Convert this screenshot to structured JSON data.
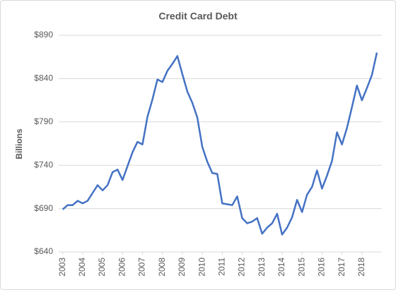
{
  "chart_data": {
    "type": "line",
    "title": "Credit Card Debt",
    "y_label": "Billions",
    "x": [
      2003,
      2003.25,
      2003.5,
      2003.75,
      2004,
      2004.25,
      2004.5,
      2004.75,
      2005,
      2005.25,
      2005.5,
      2005.75,
      2006,
      2006.25,
      2006.5,
      2006.75,
      2007,
      2007.25,
      2007.5,
      2007.75,
      2008,
      2008.25,
      2008.5,
      2008.75,
      2009,
      2009.25,
      2009.5,
      2009.75,
      2010,
      2010.25,
      2010.5,
      2010.75,
      2011,
      2011.25,
      2011.5,
      2011.75,
      2012,
      2012.25,
      2012.5,
      2012.75,
      2013,
      2013.25,
      2013.5,
      2013.75,
      2014,
      2014.25,
      2014.5,
      2014.75,
      2015,
      2015.25,
      2015.5,
      2015.75,
      2016,
      2016.25,
      2016.5,
      2016.75,
      2017,
      2017.25,
      2017.5,
      2017.75,
      2018,
      2018.25,
      2018.5,
      2018.75
    ],
    "series": [
      {
        "name": "Credit Card Debt",
        "color": "#4472c4",
        "values": [
          689,
          694,
          694,
          699,
          696,
          699,
          708,
          717,
          711,
          717,
          732,
          735,
          723,
          739,
          755,
          767,
          764,
          796,
          816,
          839,
          836,
          849,
          857,
          866,
          845,
          825,
          812,
          795,
          761,
          744,
          731,
          730,
          696,
          695,
          694,
          704,
          679,
          673,
          675,
          679,
          661,
          668,
          673,
          684,
          660,
          668,
          680,
          700,
          686,
          706,
          715,
          734,
          713,
          728,
          745,
          778,
          764,
          783,
          807,
          832,
          815,
          829,
          844,
          870
        ]
      }
    ],
    "xlim": [
      2002.8,
      2019.0
    ],
    "xticks": [
      2003,
      2004,
      2005,
      2006,
      2007,
      2008,
      2009,
      2010,
      2011,
      2012,
      2013,
      2014,
      2015,
      2016,
      2017,
      2018
    ],
    "ylim": [
      640,
      890
    ],
    "yticks": [
      {
        "value": 640,
        "label": "$640"
      },
      {
        "value": 690,
        "label": "$690"
      },
      {
        "value": 740,
        "label": "$740"
      },
      {
        "value": 790,
        "label": "$790"
      },
      {
        "value": 840,
        "label": "$840"
      },
      {
        "value": 890,
        "label": "$890"
      }
    ],
    "grid": true
  }
}
